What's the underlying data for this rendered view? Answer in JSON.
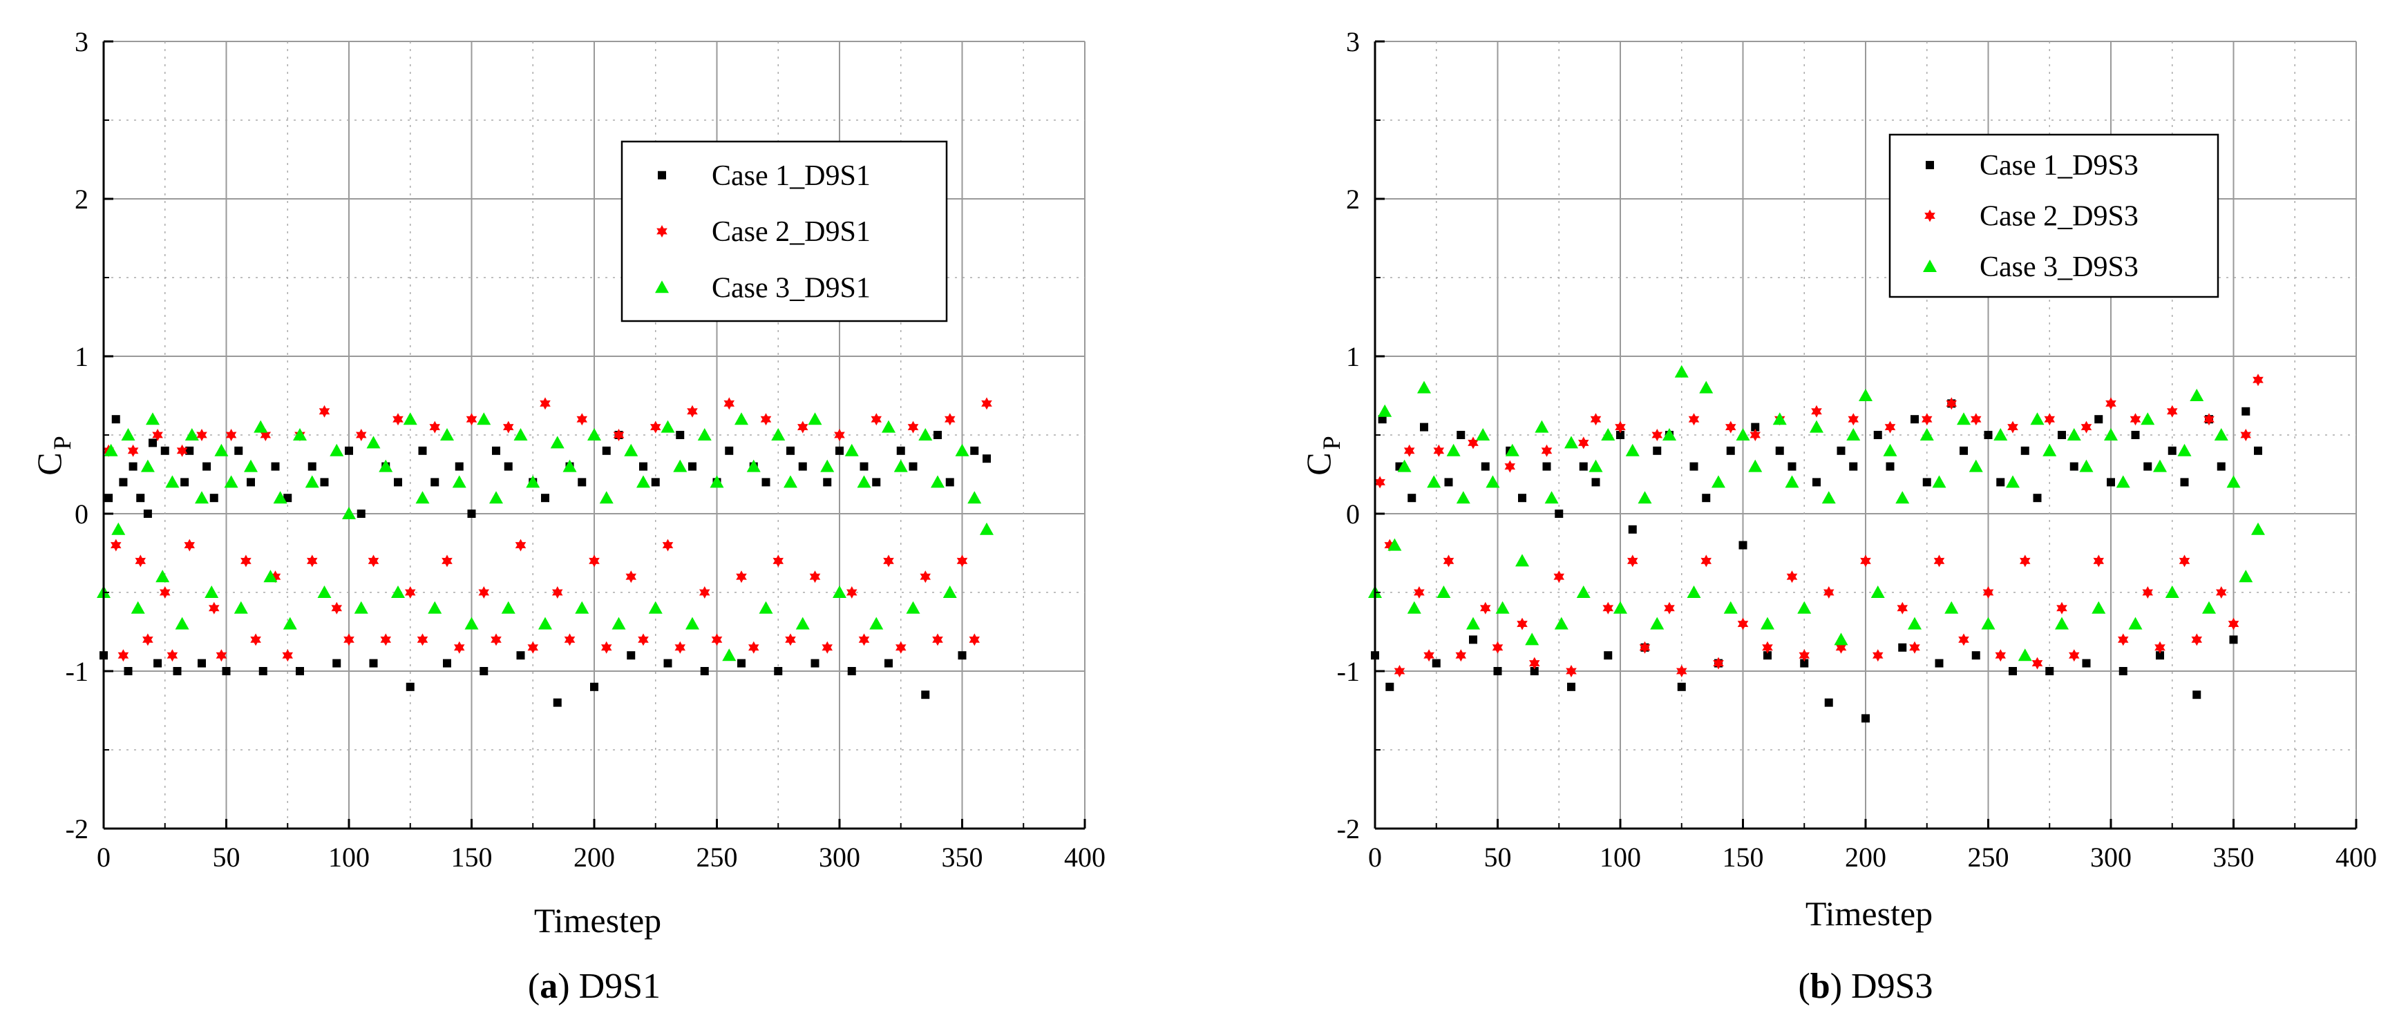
{
  "chart_data": [
    {
      "type": "scatter",
      "panel_id": "a",
      "caption_letter": "a",
      "caption_text": "D9S1",
      "xlabel": "Timestep",
      "ylabel": "C",
      "ylabel_sub": "P",
      "xlim": [
        0,
        400
      ],
      "ylim": [
        -2,
        3
      ],
      "xticks": [
        0,
        50,
        100,
        150,
        200,
        250,
        300,
        350,
        400
      ],
      "yticks": [
        -2,
        -1,
        0,
        1,
        2,
        3
      ],
      "grid": true,
      "legend_position": "top-right",
      "series": [
        {
          "name": "Case 1_D9S1",
          "marker": "square",
          "color": "#000000",
          "x": [
            0,
            2,
            5,
            8,
            10,
            12,
            15,
            18,
            20,
            22,
            25,
            30,
            33,
            35,
            40,
            42,
            45,
            50,
            55,
            60,
            65,
            70,
            75,
            80,
            85,
            90,
            95,
            100,
            105,
            110,
            115,
            120,
            125,
            130,
            135,
            140,
            145,
            150,
            155,
            160,
            165,
            170,
            175,
            180,
            185,
            190,
            195,
            200,
            205,
            210,
            215,
            220,
            225,
            230,
            235,
            240,
            245,
            250,
            255,
            260,
            265,
            270,
            275,
            280,
            285,
            290,
            295,
            300,
            305,
            310,
            315,
            320,
            325,
            330,
            335,
            340,
            345,
            350,
            355,
            360
          ],
          "y": [
            -0.9,
            0.1,
            0.6,
            0.2,
            -1.0,
            0.3,
            0.1,
            0.0,
            0.45,
            -0.95,
            0.4,
            -1.0,
            0.2,
            0.4,
            -0.95,
            0.3,
            0.1,
            -1.0,
            0.4,
            0.2,
            -1.0,
            0.3,
            0.1,
            -1.0,
            0.3,
            0.2,
            -0.95,
            0.4,
            0.0,
            -0.95,
            0.3,
            0.2,
            -1.1,
            0.4,
            0.2,
            -0.95,
            0.3,
            0.0,
            -1.0,
            0.4,
            0.3,
            -0.9,
            0.2,
            0.1,
            -1.2,
            0.3,
            0.2,
            -1.1,
            0.4,
            0.5,
            -0.9,
            0.3,
            0.2,
            -0.95,
            0.5,
            0.3,
            -1.0,
            0.2,
            0.4,
            -0.95,
            0.3,
            0.2,
            -1.0,
            0.4,
            0.3,
            -0.95,
            0.2,
            0.4,
            -1.0,
            0.3,
            0.2,
            -0.95,
            0.4,
            0.3,
            -1.15,
            0.5,
            0.2,
            -0.9,
            0.4,
            0.35
          ]
        },
        {
          "name": "Case 2_D9S1",
          "marker": "star",
          "color": "#ff0000",
          "x": [
            2,
            5,
            8,
            12,
            15,
            18,
            22,
            25,
            28,
            32,
            35,
            40,
            45,
            48,
            52,
            58,
            62,
            66,
            70,
            75,
            80,
            85,
            90,
            95,
            100,
            105,
            110,
            115,
            120,
            125,
            130,
            135,
            140,
            145,
            150,
            155,
            160,
            165,
            170,
            175,
            180,
            185,
            190,
            195,
            200,
            205,
            210,
            215,
            220,
            225,
            230,
            235,
            240,
            245,
            250,
            255,
            260,
            265,
            270,
            275,
            280,
            285,
            290,
            295,
            300,
            305,
            310,
            315,
            320,
            325,
            330,
            335,
            340,
            345,
            350,
            355,
            360
          ],
          "y": [
            0.4,
            -0.2,
            -0.9,
            0.4,
            -0.3,
            -0.8,
            0.5,
            -0.5,
            -0.9,
            0.4,
            -0.2,
            0.5,
            -0.6,
            -0.9,
            0.5,
            -0.3,
            -0.8,
            0.5,
            -0.4,
            -0.9,
            0.5,
            -0.3,
            0.65,
            -0.6,
            -0.8,
            0.5,
            -0.3,
            -0.8,
            0.6,
            -0.5,
            -0.8,
            0.55,
            -0.3,
            -0.85,
            0.6,
            -0.5,
            -0.8,
            0.55,
            -0.2,
            -0.85,
            0.7,
            -0.5,
            -0.8,
            0.6,
            -0.3,
            -0.85,
            0.5,
            -0.4,
            -0.8,
            0.55,
            -0.2,
            -0.85,
            0.65,
            -0.5,
            -0.8,
            0.7,
            -0.4,
            -0.85,
            0.6,
            -0.3,
            -0.8,
            0.55,
            -0.4,
            -0.85,
            0.5,
            -0.5,
            -0.8,
            0.6,
            -0.3,
            -0.85,
            0.55,
            -0.4,
            -0.8,
            0.6,
            -0.3,
            -0.8,
            0.7
          ]
        },
        {
          "name": "Case 3_D9S1",
          "marker": "triangle",
          "color": "#00ee00",
          "x": [
            0,
            3,
            6,
            10,
            14,
            18,
            20,
            24,
            28,
            32,
            36,
            40,
            44,
            48,
            52,
            56,
            60,
            64,
            68,
            72,
            76,
            80,
            85,
            90,
            95,
            100,
            105,
            110,
            115,
            120,
            125,
            130,
            135,
            140,
            145,
            150,
            155,
            160,
            165,
            170,
            175,
            180,
            185,
            190,
            195,
            200,
            205,
            210,
            215,
            220,
            225,
            230,
            235,
            240,
            245,
            250,
            255,
            260,
            265,
            270,
            275,
            280,
            285,
            290,
            295,
            300,
            305,
            310,
            315,
            320,
            325,
            330,
            335,
            340,
            345,
            350,
            355,
            360
          ],
          "y": [
            -0.5,
            0.4,
            -0.1,
            0.5,
            -0.6,
            0.3,
            0.6,
            -0.4,
            0.2,
            -0.7,
            0.5,
            0.1,
            -0.5,
            0.4,
            0.2,
            -0.6,
            0.3,
            0.55,
            -0.4,
            0.1,
            -0.7,
            0.5,
            0.2,
            -0.5,
            0.4,
            0.0,
            -0.6,
            0.45,
            0.3,
            -0.5,
            0.6,
            0.1,
            -0.6,
            0.5,
            0.2,
            -0.7,
            0.6,
            0.1,
            -0.6,
            0.5,
            0.2,
            -0.7,
            0.45,
            0.3,
            -0.6,
            0.5,
            0.1,
            -0.7,
            0.4,
            0.2,
            -0.6,
            0.55,
            0.3,
            -0.7,
            0.5,
            0.2,
            -0.9,
            0.6,
            0.3,
            -0.6,
            0.5,
            0.2,
            -0.7,
            0.6,
            0.3,
            -0.5,
            0.4,
            0.2,
            -0.7,
            0.55,
            0.3,
            -0.6,
            0.5,
            0.2,
            -0.5,
            0.4,
            0.1,
            -0.1
          ]
        }
      ]
    },
    {
      "type": "scatter",
      "panel_id": "b",
      "caption_letter": "b",
      "caption_text": "D9S3",
      "xlabel": "Timestep",
      "ylabel": "C",
      "ylabel_sub": "P",
      "xlim": [
        0,
        400
      ],
      "ylim": [
        -2,
        3
      ],
      "xticks": [
        0,
        50,
        100,
        150,
        200,
        250,
        300,
        350,
        400
      ],
      "yticks": [
        -2,
        -1,
        0,
        1,
        2,
        3
      ],
      "grid": true,
      "legend_position": "top-right",
      "series": [
        {
          "name": "Case 1_D9S3",
          "marker": "square",
          "color": "#000000",
          "x": [
            0,
            3,
            6,
            10,
            15,
            20,
            25,
            30,
            35,
            40,
            45,
            50,
            55,
            60,
            65,
            70,
            75,
            80,
            85,
            90,
            95,
            100,
            105,
            110,
            115,
            120,
            125,
            130,
            135,
            140,
            145,
            150,
            155,
            160,
            165,
            170,
            175,
            180,
            185,
            190,
            195,
            200,
            205,
            210,
            215,
            220,
            225,
            230,
            235,
            240,
            245,
            250,
            255,
            260,
            265,
            270,
            275,
            280,
            285,
            290,
            295,
            300,
            305,
            310,
            315,
            320,
            325,
            330,
            335,
            340,
            345,
            350,
            355,
            360
          ],
          "y": [
            -0.9,
            0.6,
            -1.1,
            0.3,
            0.1,
            0.55,
            -0.95,
            0.2,
            0.5,
            -0.8,
            0.3,
            -1.0,
            0.4,
            0.1,
            -1.0,
            0.3,
            0.0,
            -1.1,
            0.3,
            0.2,
            -0.9,
            0.5,
            -0.1,
            -0.85,
            0.4,
            0.5,
            -1.1,
            0.3,
            0.1,
            -0.95,
            0.4,
            -0.2,
            0.55,
            -0.9,
            0.4,
            0.3,
            -0.95,
            0.2,
            -1.2,
            0.4,
            0.3,
            -1.3,
            0.5,
            0.3,
            -0.85,
            0.6,
            0.2,
            -0.95,
            0.7,
            0.4,
            -0.9,
            0.5,
            0.2,
            -1.0,
            0.4,
            0.1,
            -1.0,
            0.5,
            0.3,
            -0.95,
            0.6,
            0.2,
            -1.0,
            0.5,
            0.3,
            -0.9,
            0.4,
            0.2,
            -1.15,
            0.6,
            0.3,
            -0.8,
            0.65,
            0.4
          ]
        },
        {
          "name": "Case 2_D9S3",
          "marker": "star",
          "color": "#ff0000",
          "x": [
            2,
            6,
            10,
            14,
            18,
            22,
            26,
            30,
            35,
            40,
            45,
            50,
            55,
            60,
            65,
            70,
            75,
            80,
            85,
            90,
            95,
            100,
            105,
            110,
            115,
            120,
            125,
            130,
            135,
            140,
            145,
            150,
            155,
            160,
            165,
            170,
            175,
            180,
            185,
            190,
            195,
            200,
            205,
            210,
            215,
            220,
            225,
            230,
            235,
            240,
            245,
            250,
            255,
            260,
            265,
            270,
            275,
            280,
            285,
            290,
            295,
            300,
            305,
            310,
            315,
            320,
            325,
            330,
            335,
            340,
            345,
            350,
            355,
            360
          ],
          "y": [
            0.2,
            -0.2,
            -1.0,
            0.4,
            -0.5,
            -0.9,
            0.4,
            -0.3,
            -0.9,
            0.45,
            -0.6,
            -0.85,
            0.3,
            -0.7,
            -0.95,
            0.4,
            -0.4,
            -1.0,
            0.45,
            0.6,
            -0.6,
            0.55,
            -0.3,
            -0.85,
            0.5,
            -0.6,
            -1.0,
            0.6,
            -0.3,
            -0.95,
            0.55,
            -0.7,
            0.5,
            -0.85,
            0.6,
            -0.4,
            -0.9,
            0.65,
            -0.5,
            -0.85,
            0.6,
            -0.3,
            -0.9,
            0.55,
            -0.6,
            -0.85,
            0.6,
            -0.3,
            0.7,
            -0.8,
            0.6,
            -0.5,
            -0.9,
            0.55,
            -0.3,
            -0.95,
            0.6,
            -0.6,
            -0.9,
            0.55,
            -0.3,
            0.7,
            -0.8,
            0.6,
            -0.5,
            -0.85,
            0.65,
            -0.3,
            -0.8,
            0.6,
            -0.5,
            -0.7,
            0.5,
            0.85
          ]
        },
        {
          "name": "Case 3_D9S3",
          "marker": "triangle",
          "color": "#00ee00",
          "x": [
            0,
            4,
            8,
            12,
            16,
            20,
            24,
            28,
            32,
            36,
            40,
            44,
            48,
            52,
            56,
            60,
            64,
            68,
            72,
            76,
            80,
            85,
            90,
            95,
            100,
            105,
            110,
            115,
            120,
            125,
            130,
            135,
            140,
            145,
            150,
            155,
            160,
            165,
            170,
            175,
            180,
            185,
            190,
            195,
            200,
            205,
            210,
            215,
            220,
            225,
            230,
            235,
            240,
            245,
            250,
            255,
            260,
            265,
            270,
            275,
            280,
            285,
            290,
            295,
            300,
            305,
            310,
            315,
            320,
            325,
            330,
            335,
            340,
            345,
            350,
            355,
            360
          ],
          "y": [
            -0.5,
            0.65,
            -0.2,
            0.3,
            -0.6,
            0.8,
            0.2,
            -0.5,
            0.4,
            0.1,
            -0.7,
            0.5,
            0.2,
            -0.6,
            0.4,
            -0.3,
            -0.8,
            0.55,
            0.1,
            -0.7,
            0.45,
            -0.5,
            0.3,
            0.5,
            -0.6,
            0.4,
            0.1,
            -0.7,
            0.5,
            0.9,
            -0.5,
            0.8,
            0.2,
            -0.6,
            0.5,
            0.3,
            -0.7,
            0.6,
            0.2,
            -0.6,
            0.55,
            0.1,
            -0.8,
            0.5,
            0.75,
            -0.5,
            0.4,
            0.1,
            -0.7,
            0.5,
            0.2,
            -0.6,
            0.6,
            0.3,
            -0.7,
            0.5,
            0.2,
            -0.9,
            0.6,
            0.4,
            -0.7,
            0.5,
            0.3,
            -0.6,
            0.5,
            0.2,
            -0.7,
            0.6,
            0.3,
            -0.5,
            0.4,
            0.75,
            -0.6,
            0.5,
            0.2,
            -0.4,
            -0.1
          ]
        }
      ]
    }
  ]
}
